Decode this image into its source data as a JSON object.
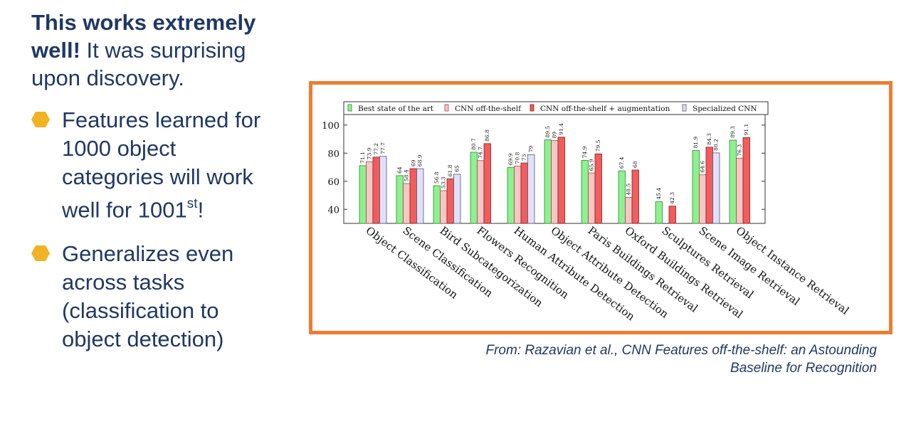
{
  "slide": {
    "intro_bold": "This works extremely well!",
    "intro_rest": " It was surprising upon discovery.",
    "bullet1_text": "Features learned for 1000 object categories will work well for 1001",
    "bullet1_sup": "st",
    "bullet1_end": "!",
    "bullet2_text": "Generalizes even across tasks (classification to object detection)",
    "bullet_color": "#f0b323",
    "text_color": "#1f3864",
    "frame_color": "#ed7d31",
    "caption_line1": "From: Razavian et al., CNN Features off-the-shelf: an Astounding",
    "caption_line2": "Baseline for Recognition"
  },
  "chart_data": {
    "type": "bar",
    "categories": [
      "Object Classification",
      "Scene Classification",
      "Bird Subcategorization",
      "Flowers Recognition",
      "Human Attribute Detection",
      "Object Attribute Detection",
      "Paris Buildings Retrieval",
      "Oxford Buildings Retrieval",
      "Sculptures Retrieval",
      "Scene Image Retrieval",
      "Object Instance Retrieval"
    ],
    "series": [
      {
        "name": "Best state of the art",
        "color": "#8ff08f",
        "stroke": "#2a8a2a",
        "values": [
          71.1,
          64,
          56.8,
          80.7,
          69.9,
          89.5,
          74.9,
          67.4,
          45.4,
          81.9,
          89.3
        ]
      },
      {
        "name": "CNN off-the-shelf",
        "color": "#f9c6c6",
        "stroke": "#9a4a4a",
        "values": [
          73.9,
          58.4,
          53.3,
          74.7,
          70.8,
          89,
          65.9,
          48.5,
          null,
          64.6,
          76.3
        ]
      },
      {
        "name": "CNN off-the-shelf + augmentation",
        "color": "#f25c5c",
        "stroke": "#8a1e1e",
        "values": [
          77.2,
          69,
          61.8,
          86.8,
          73,
          91.4,
          79.5,
          68,
          42.3,
          84.3,
          91.1
        ]
      },
      {
        "name": "Specialized CNN",
        "color": "#e0e0f8",
        "stroke": "#55557a",
        "values": [
          77.7,
          68.9,
          65,
          null,
          79,
          null,
          null,
          null,
          null,
          80.2,
          null
        ]
      }
    ],
    "yticks": [
      40,
      60,
      80,
      100
    ],
    "ylim": [
      30,
      108
    ],
    "legend_position": "top",
    "grid": false
  }
}
